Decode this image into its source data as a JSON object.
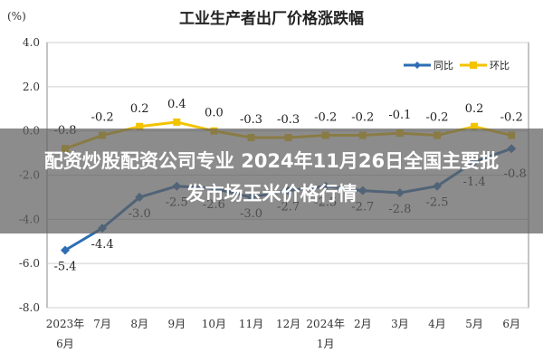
{
  "chart_data": {
    "type": "line",
    "title": "工业生产者出厂价格涨跌幅",
    "unit_label": "(%)",
    "ylim": [
      -8.0,
      4.0
    ],
    "yticks": [
      "4.0",
      "2.0",
      "0.0",
      "-2.0",
      "-4.0",
      "-6.0",
      "-8.0"
    ],
    "ytick_values": [
      4,
      2,
      0,
      -2,
      -4,
      -6,
      -8
    ],
    "categories": [
      {
        "line1": "2023年",
        "line2": "6月"
      },
      {
        "line1": "7月",
        "line2": ""
      },
      {
        "line1": "8月",
        "line2": ""
      },
      {
        "line1": "9月",
        "line2": ""
      },
      {
        "line1": "10月",
        "line2": ""
      },
      {
        "line1": "11月",
        "line2": ""
      },
      {
        "line1": "12月",
        "line2": ""
      },
      {
        "line1": "2024年",
        "line2": "1月"
      },
      {
        "line1": "2月",
        "line2": ""
      },
      {
        "line1": "3月",
        "line2": ""
      },
      {
        "line1": "4月",
        "line2": ""
      },
      {
        "line1": "5月",
        "line2": ""
      },
      {
        "line1": "6月",
        "line2": ""
      }
    ],
    "series": [
      {
        "name": "同比",
        "color": "#2e6db4",
        "marker": "diamond",
        "values": [
          -5.4,
          -4.4,
          -3.0,
          -2.5,
          -2.6,
          -3.0,
          -2.7,
          -2.5,
          -2.7,
          -2.8,
          -2.5,
          -1.4,
          -0.8
        ],
        "labels": [
          "-5.4",
          "-4.4",
          "-3.0",
          "-2.5",
          "-2.6",
          "-3.0",
          "-2.7",
          "-2.5",
          "-2.7",
          "-2.8",
          "-2.5",
          "-1.4",
          "-0.8"
        ]
      },
      {
        "name": "环比",
        "color": "#f3c300",
        "marker": "square",
        "values": [
          -0.8,
          -0.2,
          0.2,
          0.4,
          0.0,
          -0.3,
          -0.3,
          -0.2,
          -0.2,
          -0.1,
          -0.2,
          0.2,
          -0.2
        ],
        "labels": [
          "-0.8",
          "-0.2",
          "0.2",
          "0.4",
          "0.0",
          "-0.3",
          "-0.3",
          "-0.2",
          "-0.2",
          "-0.1",
          "-0.2",
          "0.2",
          "-0.2"
        ]
      }
    ],
    "legend_position": "top-right",
    "grid": "horizontal"
  },
  "overlay": {
    "text": "配资炒股配资公司专业 2024年11月26日全国主要批发市场玉米价格行情"
  }
}
